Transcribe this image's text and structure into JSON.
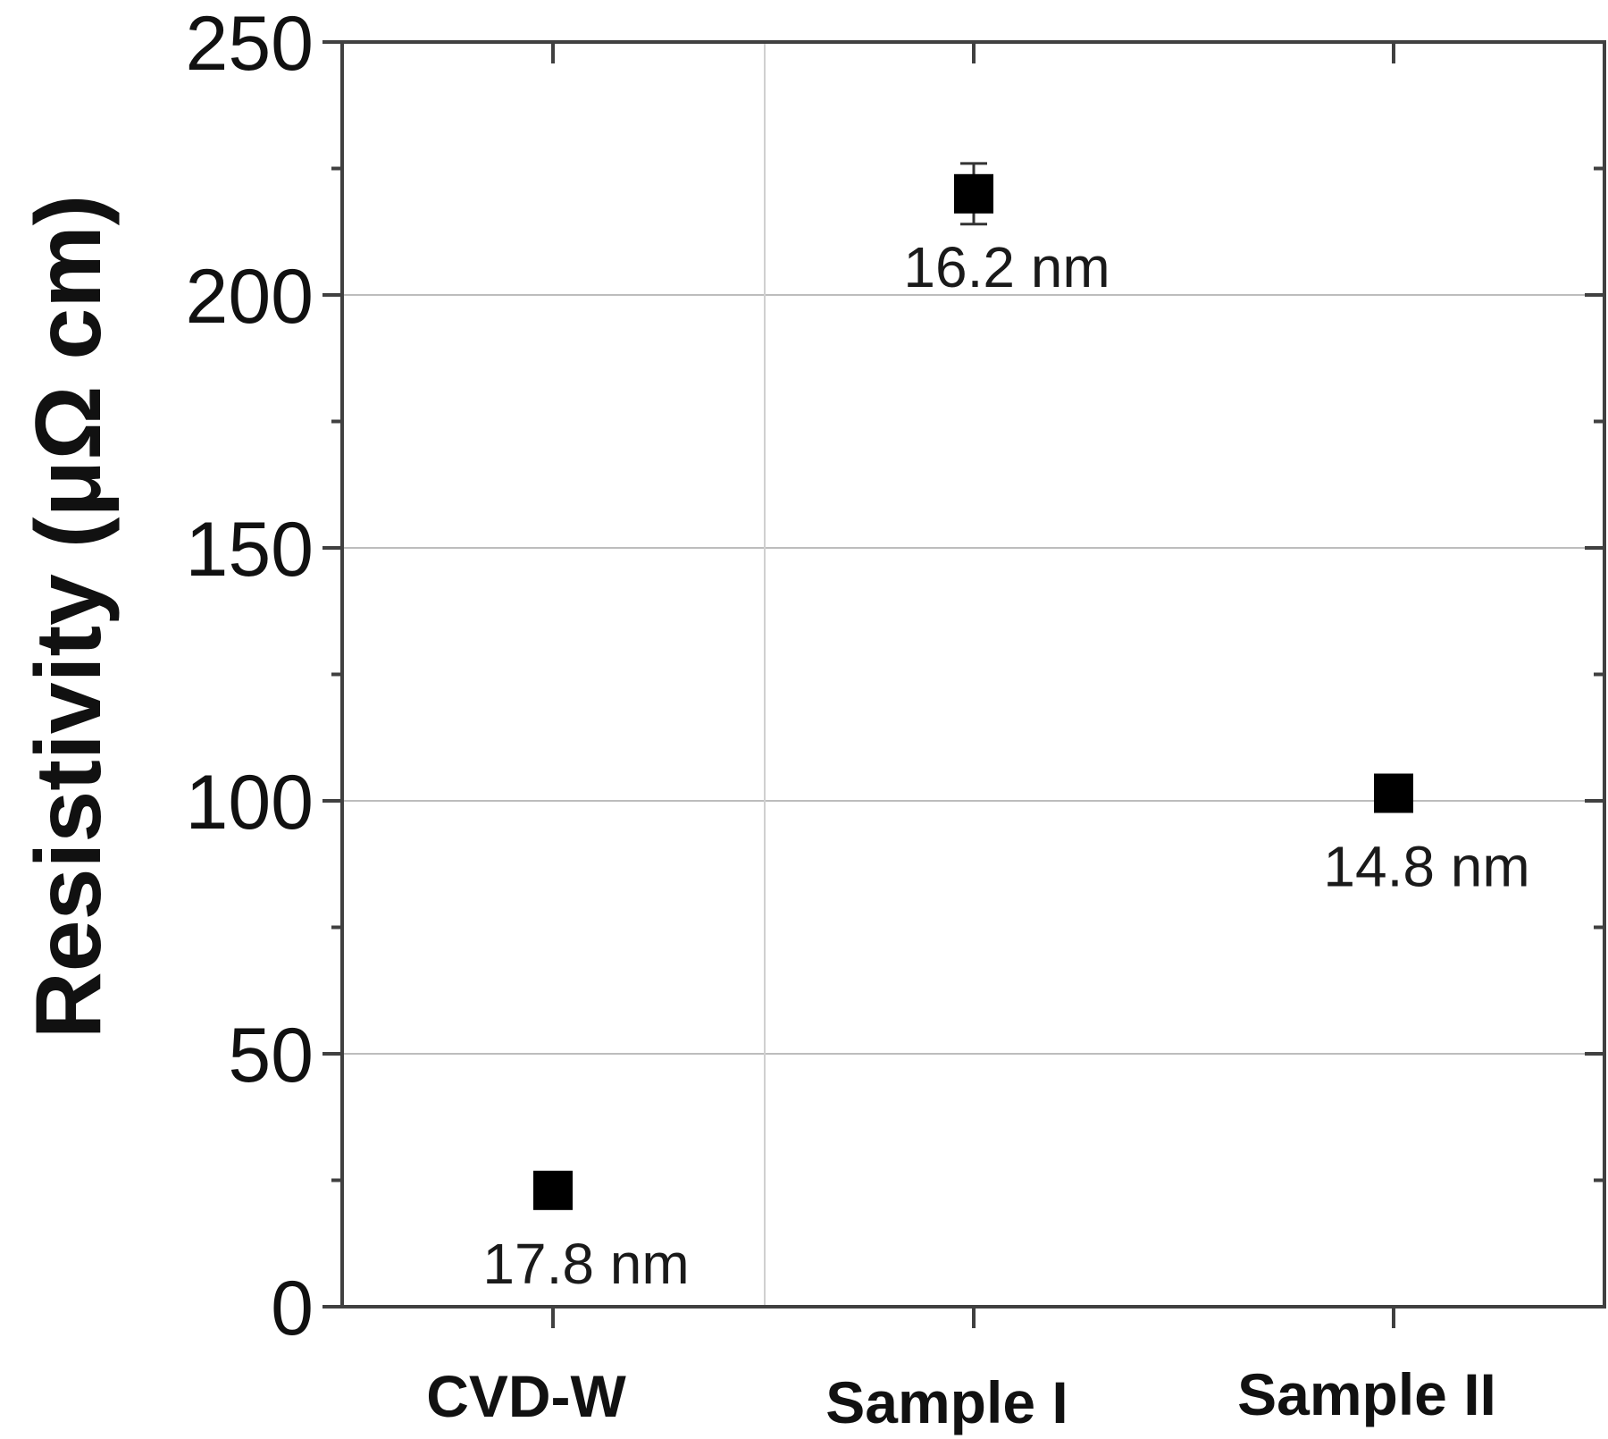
{
  "chart_data": {
    "type": "scatter",
    "title": "",
    "xlabel": "",
    "ylabel": "Resistivity (μΩ cm)",
    "categories": [
      "CVD-W",
      "Sample I",
      "Sample II"
    ],
    "values": [
      23,
      220,
      101.5
    ],
    "error": [
      0,
      6,
      0
    ],
    "annotations": [
      "17.8 nm",
      "16.2 nm",
      "14.8 nm"
    ],
    "ylim": [
      0,
      250
    ],
    "yticks": [
      0,
      50,
      100,
      150,
      200,
      250
    ],
    "yminor_ticks": [
      25,
      75,
      125,
      175,
      225
    ],
    "grid": true,
    "legend": null,
    "marker": "square",
    "marker_color": "#000000",
    "grid_color": "#bdbdbd",
    "axis_color": "#404040"
  }
}
